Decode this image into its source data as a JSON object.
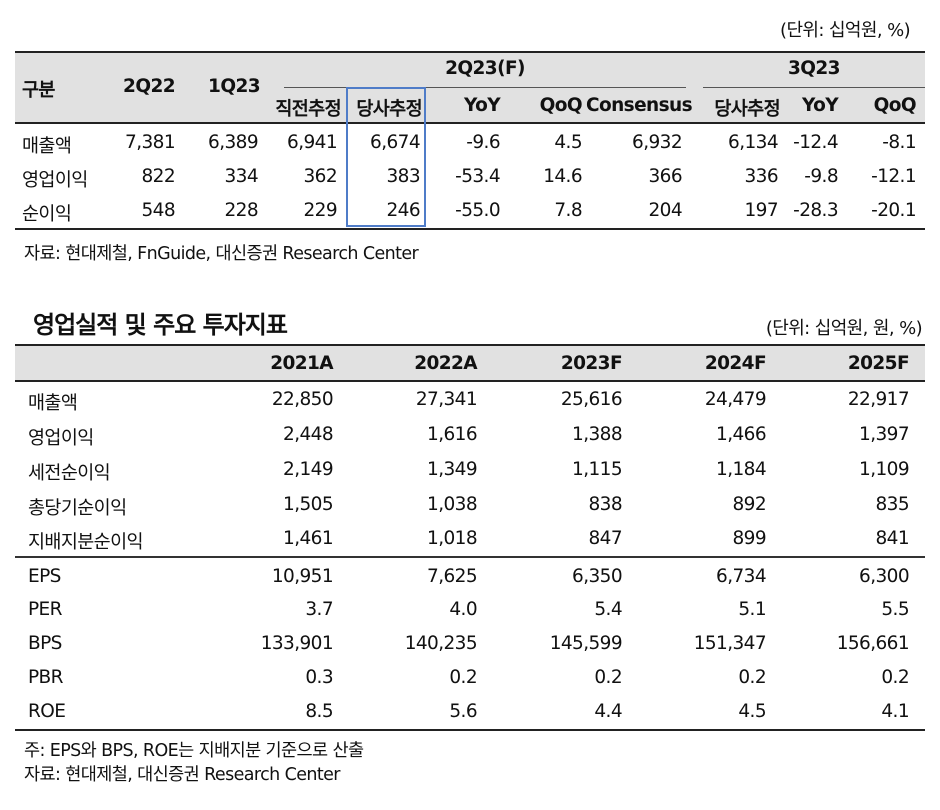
{
  "table1": {
    "unit": "(단위: 십억원, %)",
    "headers": {
      "category": "구분",
      "col_2q22": "2Q22",
      "col_1q23": "1Q23",
      "group_2q23": "2Q23(F)",
      "group_3q23": "3Q23",
      "sub": [
        "직전추정",
        "당사추정",
        "YoY",
        "QoQ",
        "Consensus",
        "당사추정",
        "YoY",
        "QoQ"
      ]
    },
    "rows": [
      {
        "label": "매출액",
        "values": [
          "7,381",
          "6,389",
          "6,941",
          "6,674",
          "-9.6",
          "4.5",
          "6,932",
          "6,134",
          "-12.4",
          "-8.1"
        ]
      },
      {
        "label": "영업이익",
        "values": [
          "822",
          "334",
          "362",
          "383",
          "-53.4",
          "14.6",
          "366",
          "336",
          "-9.8",
          "-12.1"
        ]
      },
      {
        "label": "순이익",
        "values": [
          "548",
          "228",
          "229",
          "246",
          "-55.0",
          "7.8",
          "204",
          "197",
          "-28.3",
          "-20.1"
        ]
      }
    ],
    "source": "자료: 현대제철, FnGuide, 대신증권 Research Center"
  },
  "table2": {
    "title": "영업실적 및 주요 투자지표",
    "unit": "(단위: 십억원, 원, %)",
    "headers": [
      "2021A",
      "2022A",
      "2023F",
      "2024F",
      "2025F"
    ],
    "rows": [
      {
        "label": "매출액",
        "values": [
          "22,850",
          "27,341",
          "25,616",
          "24,479",
          "22,917"
        ]
      },
      {
        "label": "영업이익",
        "values": [
          "2,448",
          "1,616",
          "1,388",
          "1,466",
          "1,397"
        ]
      },
      {
        "label": "세전순이익",
        "values": [
          "2,149",
          "1,349",
          "1,115",
          "1,184",
          "1,109"
        ]
      },
      {
        "label": "총당기순이익",
        "values": [
          "1,505",
          "1,038",
          "838",
          "892",
          "835"
        ]
      },
      {
        "label": "지배지분순이익",
        "values": [
          "1,461",
          "1,018",
          "847",
          "899",
          "841"
        ]
      },
      {
        "label": "EPS",
        "values": [
          "10,951",
          "7,625",
          "6,350",
          "6,734",
          "6,300"
        ]
      },
      {
        "label": "PER",
        "values": [
          "3.7",
          "4.0",
          "5.4",
          "5.1",
          "5.5"
        ]
      },
      {
        "label": "BPS",
        "values": [
          "133,901",
          "140,235",
          "145,599",
          "151,347",
          "156,661"
        ]
      },
      {
        "label": "PBR",
        "values": [
          "0.3",
          "0.2",
          "0.2",
          "0.2",
          "0.2"
        ]
      },
      {
        "label": "ROE",
        "values": [
          "8.5",
          "5.6",
          "4.4",
          "4.5",
          "4.1"
        ]
      }
    ],
    "note": "주: EPS와 BPS, ROE는 지배지분 기준으로 산출",
    "source": "자료: 현대제철, 대신증권 Research Center"
  },
  "colors": {
    "header_bg": "#e1e1e1",
    "highlight_border": "#4f7cc8"
  }
}
